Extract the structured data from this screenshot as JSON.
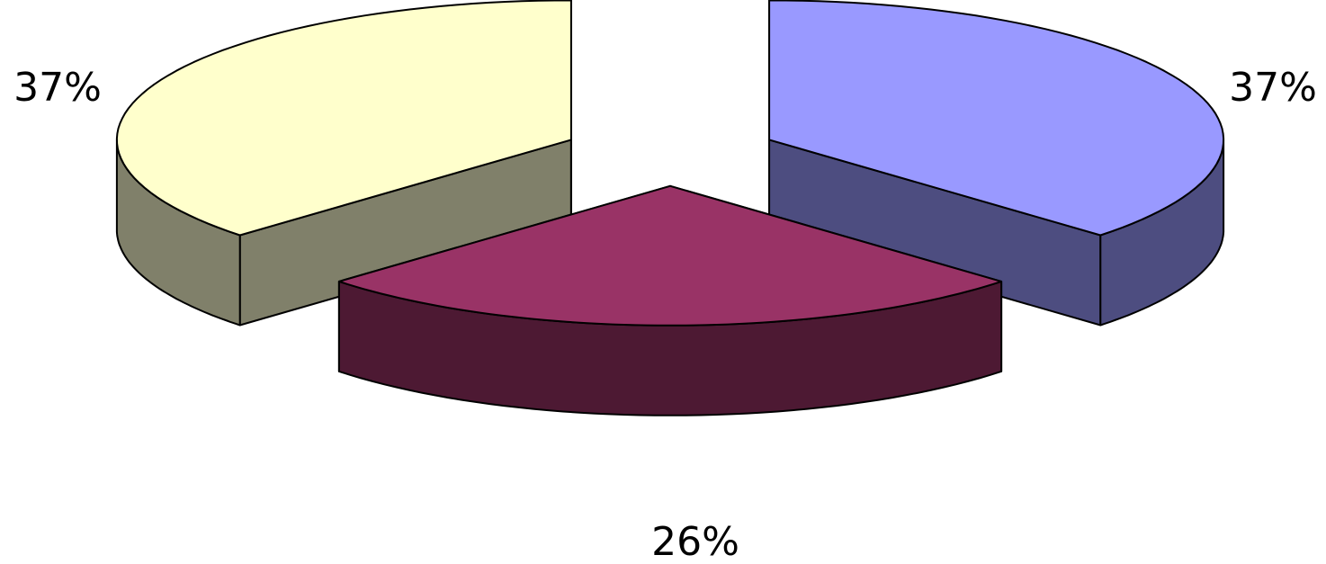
{
  "chart_data": {
    "type": "pie",
    "style": "3d-exploded",
    "values": [
      37,
      26,
      37
    ],
    "data_labels": [
      "37%",
      "26%",
      "37%"
    ],
    "colors": {
      "top": [
        "#9999ff",
        "#993366",
        "#ffffcc"
      ],
      "side": [
        "#4d4d80",
        "#4d1933",
        "#80806a"
      ]
    },
    "legend": "none",
    "grid": false
  }
}
